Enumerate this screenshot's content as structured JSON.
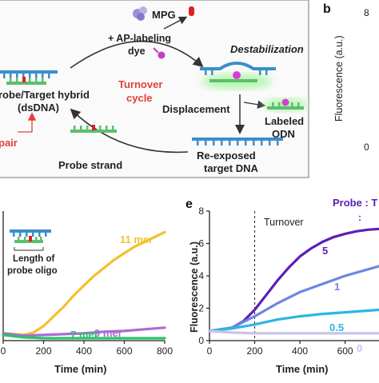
{
  "panel_a": {
    "mpg": "MPG",
    "reagent_line1": "+ AP-labeling",
    "reagent_line2": "dye",
    "destabilization": "Destabilization",
    "hybrid_line1": "robe/Target hybrid",
    "hybrid_line2": "(dsDNA)",
    "turnover_line1": "Turnover",
    "turnover_line2": "cycle",
    "displacement": "Displacement",
    "labeled_line1": "Labeled",
    "labeled_line2": "ODN",
    "pair": "pair",
    "probe_strand": "Probe strand",
    "reexposed_line1": "Re-exposed",
    "reexposed_line2": "target DNA"
  },
  "panel_b": {
    "letter": "b",
    "ylabel": "Fluorescence (a.u.)",
    "tick_top": "8",
    "tick_bottom": "0"
  },
  "panel_d": {
    "inset_label_line1": "Length of",
    "inset_label_line2": "probe oligo",
    "xlabel": "Time (min)"
  },
  "panel_e": {
    "letter": "e",
    "ylabel": "Fluorescence (a.u.)",
    "xlabel": "Time (min)",
    "turnover": "Turnover",
    "legend_title": "Probe : T",
    "legend_colon": ":"
  },
  "colors": {
    "target_blue": "#3a8fc9",
    "probe_green": "#5bbf6e",
    "mark_red": "#e02020",
    "turnover_red": "#e0403a",
    "dye_magenta": "#c23fc2",
    "glow_green": "#b8f5b0"
  },
  "chart_data": [
    {
      "type": "line",
      "panel": "d",
      "xlabel": "Time (min)",
      "ylabel": "",
      "x_ticks": [
        0,
        200,
        400,
        600,
        800
      ],
      "xlim": [
        0,
        800
      ],
      "ylim": [
        0,
        8
      ],
      "series": [
        {
          "name": "11 mer",
          "color": "#f2c12e",
          "x": [
            0,
            100,
            150,
            200,
            250,
            300,
            350,
            400,
            450,
            500,
            550,
            600,
            650,
            700,
            750,
            800
          ],
          "y": [
            0.45,
            0.35,
            0.5,
            0.9,
            1.5,
            2.1,
            2.8,
            3.4,
            4.0,
            4.5,
            5.0,
            5.4,
            5.8,
            6.1,
            6.4,
            6.7
          ]
        },
        {
          "name": "9 mer",
          "color": "#a86bd4",
          "x": [
            0,
            100,
            200,
            300,
            400,
            500,
            600,
            700,
            800
          ],
          "y": [
            0.45,
            0.3,
            0.35,
            0.4,
            0.45,
            0.55,
            0.6,
            0.7,
            0.8
          ]
        },
        {
          "name": "7 mer",
          "color": "#2cc26a",
          "x": [
            0,
            100,
            200,
            300,
            400,
            500,
            600,
            700,
            800
          ],
          "y": [
            0.35,
            0.2,
            0.15,
            0.15,
            0.15,
            0.15,
            0.15,
            0.15,
            0.15
          ]
        }
      ]
    },
    {
      "type": "line",
      "panel": "e",
      "xlabel": "Time (min)",
      "ylabel": "Fluorescence (a.u.)",
      "x_ticks": [
        0,
        200,
        400,
        600
      ],
      "y_ticks": [
        0,
        2,
        4,
        6,
        8
      ],
      "xlim": [
        0,
        750
      ],
      "ylim": [
        0,
        8
      ],
      "turnover_x": 200,
      "series": [
        {
          "name": "5",
          "color": "#5b1fb5",
          "x": [
            0,
            100,
            150,
            200,
            250,
            300,
            350,
            400,
            450,
            500,
            550,
            600,
            650,
            700,
            750
          ],
          "y": [
            0.6,
            0.8,
            1.2,
            1.9,
            2.8,
            3.7,
            4.5,
            5.2,
            5.7,
            6.1,
            6.4,
            6.6,
            6.75,
            6.85,
            6.9
          ]
        },
        {
          "name": "1",
          "color": "#6f86e0",
          "x": [
            0,
            100,
            200,
            300,
            400,
            500,
            600,
            700,
            750
          ],
          "y": [
            0.6,
            0.8,
            1.5,
            2.3,
            3.0,
            3.5,
            4.0,
            4.4,
            4.6
          ]
        },
        {
          "name": "0.5",
          "color": "#2ab7e0",
          "x": [
            0,
            100,
            200,
            300,
            400,
            500,
            600,
            700,
            750
          ],
          "y": [
            0.6,
            0.75,
            1.0,
            1.3,
            1.5,
            1.65,
            1.75,
            1.85,
            1.9
          ]
        },
        {
          "name": "0",
          "color": "#c9c3e8",
          "x": [
            0,
            100,
            200,
            300,
            400,
            500,
            600,
            700,
            750
          ],
          "y": [
            0.6,
            0.5,
            0.45,
            0.45,
            0.45,
            0.45,
            0.45,
            0.45,
            0.45
          ]
        }
      ]
    }
  ]
}
